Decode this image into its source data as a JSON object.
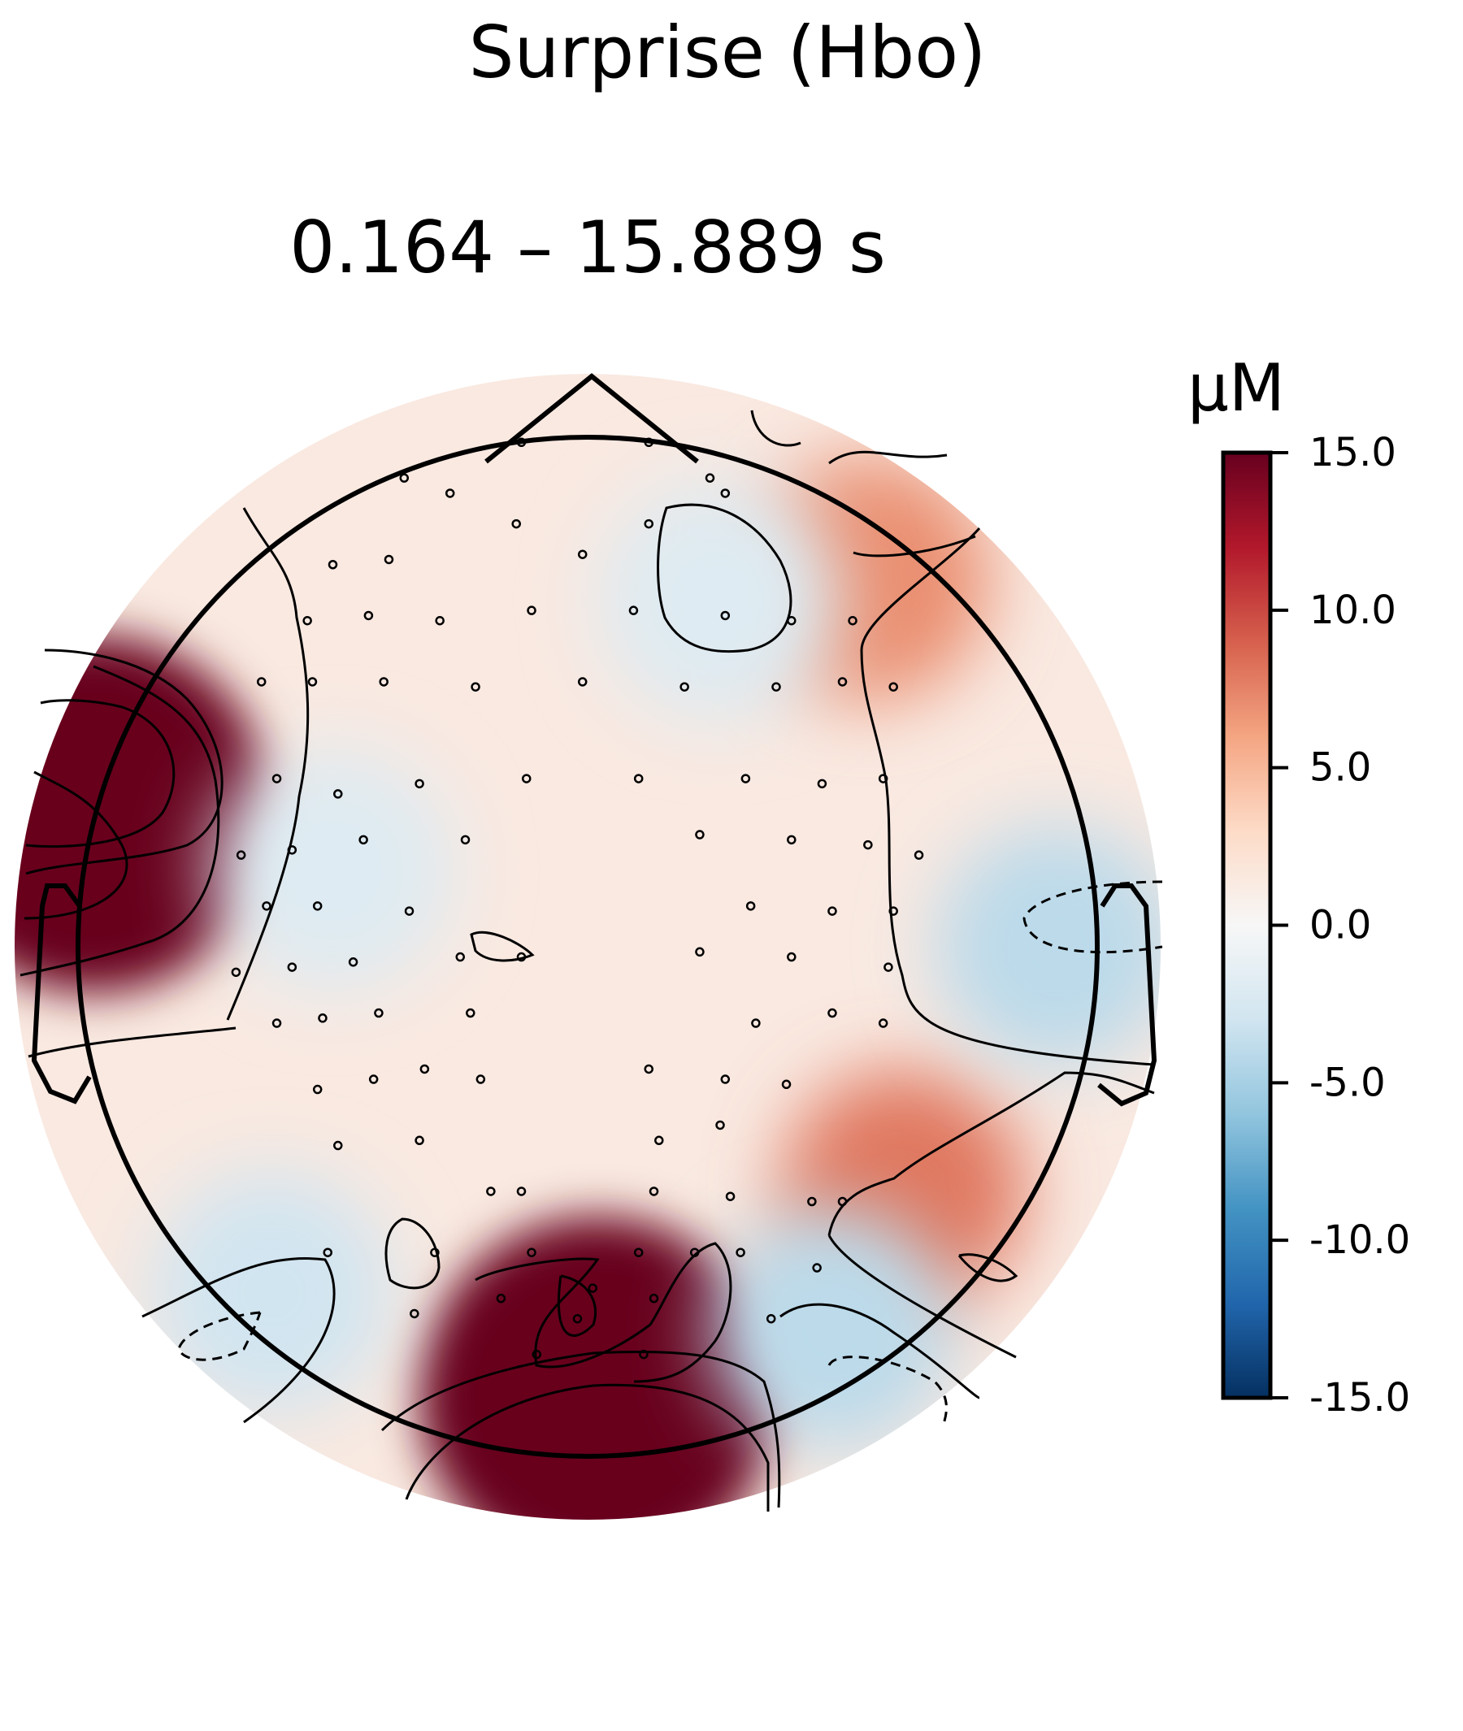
{
  "chart_data": {
    "type": "heatmap",
    "title": "Surprise (Hbo)",
    "subtitle": "0.164 – 15.889 s",
    "colorbar": {
      "label": "µM",
      "colormap": "RdBu_r",
      "colors": [
        "#053061",
        "#2166ac",
        "#4393c3",
        "#92c5de",
        "#d1e5f0",
        "#f7f7f7",
        "#fddbc7",
        "#f4a582",
        "#d6604d",
        "#b2182b",
        "#67001f"
      ],
      "vmin": -15.0,
      "vmax": 15.0,
      "ticks": [
        -15.0,
        -10.0,
        -5.0,
        0.0,
        5.0,
        10.0,
        15.0
      ],
      "tick_labels": [
        "-15.0",
        "-10.0",
        "-5.0",
        "0.0",
        "5.0",
        "10.0",
        "15.0"
      ]
    },
    "regions": [
      {
        "name": "left-temporal-peak",
        "x": -0.97,
        "y": 0.26,
        "value": 16
      },
      {
        "name": "occipital-peak",
        "x": 0.02,
        "y": -0.88,
        "value": 16
      },
      {
        "name": "right-frontal-positive",
        "x": 0.55,
        "y": 0.72,
        "value": 7
      },
      {
        "name": "right-parietal-positive",
        "x": 0.62,
        "y": -0.48,
        "value": 8
      },
      {
        "name": "right-temporal-negative",
        "x": 0.92,
        "y": 0.0,
        "value": -4
      },
      {
        "name": "right-occipital-negative",
        "x": 0.48,
        "y": -0.75,
        "value": -4
      },
      {
        "name": "left-occipital-negative",
        "x": -0.62,
        "y": -0.68,
        "value": -3
      },
      {
        "name": "left-central-negative",
        "x": -0.5,
        "y": 0.15,
        "value": -2
      },
      {
        "name": "frontal-negative",
        "x": 0.26,
        "y": 0.68,
        "value": -2
      }
    ],
    "sensors": [
      [
        -0.13,
        0.99
      ],
      [
        0.12,
        0.99
      ],
      [
        -0.36,
        0.92
      ],
      [
        -0.27,
        0.89
      ],
      [
        0.27,
        0.89
      ],
      [
        0.24,
        0.92
      ],
      [
        -0.14,
        0.83
      ],
      [
        0.12,
        0.83
      ],
      [
        -0.5,
        0.75
      ],
      [
        -0.39,
        0.76
      ],
      [
        -0.01,
        0.77
      ],
      [
        0.27,
        0.65
      ],
      [
        -0.55,
        0.64
      ],
      [
        -0.43,
        0.65
      ],
      [
        -0.29,
        0.64
      ],
      [
        -0.11,
        0.66
      ],
      [
        0.09,
        0.66
      ],
      [
        0.4,
        0.64
      ],
      [
        0.52,
        0.64
      ],
      [
        -0.64,
        0.52
      ],
      [
        -0.54,
        0.52
      ],
      [
        -0.4,
        0.52
      ],
      [
        -0.22,
        0.51
      ],
      [
        -0.01,
        0.52
      ],
      [
        0.19,
        0.51
      ],
      [
        0.37,
        0.51
      ],
      [
        0.5,
        0.52
      ],
      [
        0.6,
        0.51
      ],
      [
        -0.61,
        0.33
      ],
      [
        -0.49,
        0.3
      ],
      [
        -0.33,
        0.32
      ],
      [
        -0.12,
        0.33
      ],
      [
        0.1,
        0.33
      ],
      [
        0.31,
        0.33
      ],
      [
        0.46,
        0.32
      ],
      [
        0.58,
        0.33
      ],
      [
        -0.68,
        0.18
      ],
      [
        -0.58,
        0.19
      ],
      [
        -0.44,
        0.21
      ],
      [
        -0.24,
        0.21
      ],
      [
        0.22,
        0.22
      ],
      [
        0.4,
        0.21
      ],
      [
        0.55,
        0.2
      ],
      [
        0.65,
        0.18
      ],
      [
        -0.63,
        0.08
      ],
      [
        -0.53,
        0.08
      ],
      [
        -0.35,
        0.07
      ],
      [
        0.32,
        0.08
      ],
      [
        0.48,
        0.07
      ],
      [
        0.6,
        0.07
      ],
      [
        -0.69,
        -0.05
      ],
      [
        -0.58,
        -0.04
      ],
      [
        -0.46,
        -0.03
      ],
      [
        -0.25,
        -0.02
      ],
      [
        -0.13,
        -0.02
      ],
      [
        0.22,
        -0.01
      ],
      [
        0.4,
        -0.02
      ],
      [
        0.59,
        -0.04
      ],
      [
        -0.61,
        -0.15
      ],
      [
        -0.52,
        -0.14
      ],
      [
        -0.41,
        -0.13
      ],
      [
        -0.23,
        -0.13
      ],
      [
        0.33,
        -0.15
      ],
      [
        0.48,
        -0.13
      ],
      [
        0.58,
        -0.15
      ],
      [
        -0.53,
        -0.28
      ],
      [
        -0.42,
        -0.26
      ],
      [
        -0.32,
        -0.24
      ],
      [
        -0.21,
        -0.26
      ],
      [
        0.12,
        -0.24
      ],
      [
        0.27,
        -0.26
      ],
      [
        0.39,
        -0.27
      ],
      [
        -0.49,
        -0.39
      ],
      [
        -0.33,
        -0.38
      ],
      [
        0.14,
        -0.38
      ],
      [
        0.26,
        -0.35
      ],
      [
        -0.19,
        -0.48
      ],
      [
        -0.13,
        -0.48
      ],
      [
        0.13,
        -0.48
      ],
      [
        0.28,
        -0.49
      ],
      [
        -0.51,
        -0.6
      ],
      [
        -0.3,
        -0.6
      ],
      [
        -0.11,
        -0.6
      ],
      [
        0.1,
        -0.6
      ],
      [
        0.21,
        -0.6
      ],
      [
        0.3,
        -0.6
      ],
      [
        -0.17,
        -0.69
      ],
      [
        0.01,
        -0.67
      ],
      [
        0.13,
        -0.69
      ],
      [
        -0.34,
        -0.72
      ],
      [
        -0.02,
        -0.73
      ],
      [
        -0.1,
        -0.8
      ],
      [
        0.11,
        -0.8
      ],
      [
        0.36,
        -0.73
      ],
      [
        0.45,
        -0.63
      ],
      [
        0.5,
        -0.5
      ],
      [
        0.44,
        -0.5
      ]
    ]
  }
}
